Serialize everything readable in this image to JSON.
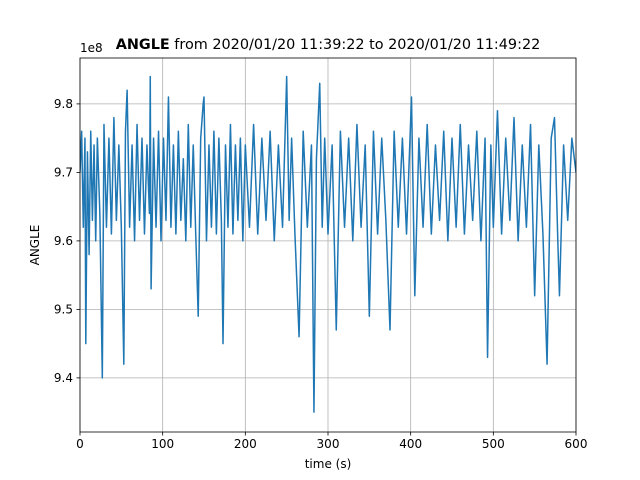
{
  "chart_data": {
    "type": "line",
    "title_bold": "ANGLE",
    "title": "from 2020/01/20 11:39:22 to 2020/01/20 11:49:22",
    "x_label": "time (s)",
    "y_label": "ANGLE",
    "offset_text": "1e8",
    "xlim": [
      0,
      600
    ],
    "xticks": [
      0,
      100,
      200,
      300,
      400,
      500,
      600
    ],
    "ylim": [
      9.321,
      9.867
    ],
    "yticks": [
      9.4,
      9.5,
      9.6,
      9.7,
      9.8
    ],
    "grid": true,
    "x": [
      0,
      2,
      4,
      6,
      7,
      9,
      11,
      13,
      15,
      17,
      19,
      21,
      24,
      27,
      29,
      32,
      35,
      38,
      41,
      44,
      47,
      50,
      53,
      55,
      57,
      60,
      63,
      66,
      69,
      72,
      75,
      78,
      81,
      84,
      85,
      86,
      89,
      92,
      95,
      98,
      101,
      104,
      107,
      110,
      113,
      116,
      119,
      122,
      125,
      128,
      131,
      134,
      137,
      140,
      143,
      146,
      149,
      150,
      153,
      156,
      159,
      162,
      165,
      168,
      171,
      173,
      176,
      179,
      182,
      185,
      188,
      191,
      194,
      197,
      200,
      205,
      210,
      215,
      220,
      225,
      230,
      235,
      240,
      245,
      250,
      253,
      256,
      260,
      265,
      270,
      275,
      280,
      283,
      286,
      290,
      293,
      296,
      300,
      305,
      310,
      315,
      320,
      325,
      330,
      335,
      340,
      345,
      350,
      355,
      360,
      365,
      370,
      375,
      380,
      385,
      390,
      395,
      401,
      405,
      410,
      415,
      420,
      425,
      430,
      435,
      440,
      445,
      450,
      455,
      460,
      465,
      470,
      475,
      480,
      485,
      490,
      493,
      497,
      500,
      505,
      510,
      515,
      520,
      525,
      530,
      535,
      540,
      545,
      550,
      555,
      560,
      565,
      570,
      574,
      578,
      580,
      585,
      590,
      595,
      600
    ],
    "series": [
      {
        "name": "ANGLE",
        "color": "#1f77b4",
        "values": [
          9.7,
          9.76,
          9.62,
          9.75,
          9.45,
          9.73,
          9.58,
          9.76,
          9.63,
          9.74,
          9.6,
          9.75,
          9.64,
          9.4,
          9.77,
          9.62,
          9.75,
          9.61,
          9.78,
          9.63,
          9.74,
          9.62,
          9.42,
          9.76,
          9.82,
          9.62,
          9.74,
          9.6,
          9.77,
          9.63,
          9.75,
          9.61,
          9.74,
          9.64,
          9.84,
          9.53,
          9.75,
          9.62,
          9.76,
          9.6,
          9.75,
          9.63,
          9.81,
          9.62,
          9.74,
          9.61,
          9.76,
          9.63,
          9.72,
          9.6,
          9.77,
          9.62,
          9.74,
          9.61,
          9.49,
          9.75,
          9.8,
          9.81,
          9.6,
          9.74,
          9.62,
          9.76,
          9.61,
          9.75,
          9.63,
          9.45,
          9.74,
          9.62,
          9.77,
          9.61,
          9.74,
          9.63,
          9.75,
          9.6,
          9.74,
          9.62,
          9.77,
          9.61,
          9.75,
          9.63,
          9.76,
          9.6,
          9.74,
          9.62,
          9.84,
          9.63,
          9.75,
          9.61,
          9.46,
          9.76,
          9.62,
          9.74,
          9.35,
          9.72,
          9.83,
          9.62,
          9.75,
          9.61,
          9.74,
          9.47,
          9.76,
          9.62,
          9.75,
          9.6,
          9.77,
          9.62,
          9.74,
          9.49,
          9.76,
          9.61,
          9.75,
          9.63,
          9.47,
          9.76,
          9.62,
          9.75,
          9.61,
          9.81,
          9.52,
          9.75,
          9.62,
          9.77,
          9.61,
          9.74,
          9.63,
          9.76,
          9.6,
          9.75,
          9.62,
          9.77,
          9.61,
          9.74,
          9.63,
          9.76,
          9.6,
          9.75,
          9.43,
          9.74,
          9.62,
          9.79,
          9.61,
          9.75,
          9.63,
          9.78,
          9.6,
          9.74,
          9.62,
          9.77,
          9.52,
          9.74,
          9.61,
          9.42,
          9.75,
          9.78,
          9.6,
          9.52,
          9.74,
          9.63,
          9.75,
          9.7
        ]
      }
    ]
  }
}
